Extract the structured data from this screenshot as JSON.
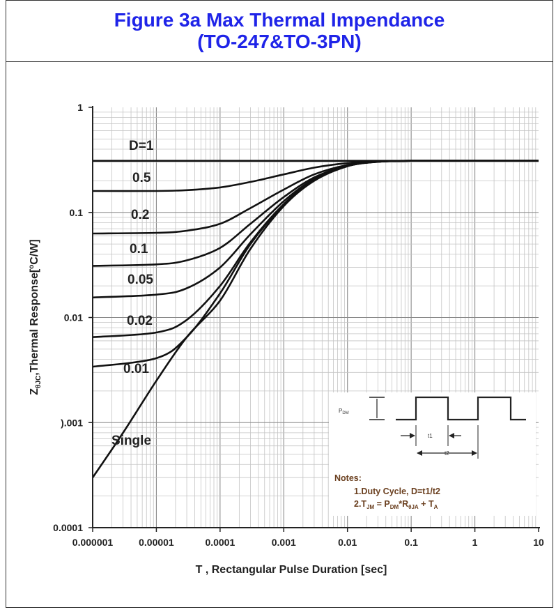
{
  "chart_data": {
    "type": "line",
    "title": "Figure 3a Max Thermal Impendance",
    "subtitle": "(TO-247&TO-3PN)",
    "xlabel": "T , Rectangular Pulse Duration [sec]",
    "ylabel_main": "Z",
    "ylabel_sub": "θJC",
    "ylabel_rest": ",Thermal Response[",
    "ylabel_sup": "o",
    "ylabel_end": "C/W]",
    "x_scale": "log",
    "y_scale": "log",
    "xlim": [
      1e-06,
      10
    ],
    "ylim": [
      0.0001,
      1
    ],
    "grid": true,
    "x_tick_labels": [
      "0.000001",
      "0.00001",
      "0.0001",
      "0.001",
      "0.01",
      "0.1",
      "1",
      "10"
    ],
    "x_tick_values": [
      1e-06,
      1e-05,
      0.0001,
      0.001,
      0.01,
      0.1,
      1,
      10
    ],
    "y_tick_labels": [
      "1",
      "0.1",
      "0.01",
      ").001",
      "0.0001"
    ],
    "y_tick_values": [
      1,
      0.1,
      0.01,
      0.001,
      0.0001
    ],
    "series": [
      {
        "name": "D=1",
        "x": [
          1e-06,
          1e-05,
          0.0001,
          0.001,
          0.01,
          0.1,
          1,
          10
        ],
        "y": [
          0.31,
          0.31,
          0.31,
          0.31,
          0.31,
          0.31,
          0.31,
          0.31
        ]
      },
      {
        "name": "0.5",
        "x": [
          1e-06,
          1e-05,
          3e-05,
          0.0001,
          0.0003,
          0.001,
          0.003,
          0.01,
          0.03,
          0.1,
          1,
          10
        ],
        "y": [
          0.16,
          0.16,
          0.163,
          0.173,
          0.195,
          0.23,
          0.267,
          0.295,
          0.307,
          0.31,
          0.31,
          0.31
        ]
      },
      {
        "name": "0.2",
        "x": [
          1e-06,
          1e-05,
          3e-05,
          0.0001,
          0.0003,
          0.001,
          0.003,
          0.01,
          0.03,
          0.1,
          1,
          10
        ],
        "y": [
          0.063,
          0.064,
          0.067,
          0.078,
          0.11,
          0.165,
          0.23,
          0.283,
          0.305,
          0.31,
          0.31,
          0.31
        ]
      },
      {
        "name": "0.1",
        "x": [
          1e-06,
          1e-05,
          3e-05,
          0.0001,
          0.0003,
          0.001,
          0.003,
          0.01,
          0.03,
          0.1,
          1,
          10
        ],
        "y": [
          0.031,
          0.032,
          0.035,
          0.046,
          0.078,
          0.14,
          0.215,
          0.279,
          0.304,
          0.31,
          0.31,
          0.31
        ]
      },
      {
        "name": "0.05",
        "x": [
          1e-06,
          1e-05,
          3e-05,
          0.0001,
          0.0003,
          0.001,
          0.003,
          0.01,
          0.03,
          0.1,
          1,
          10
        ],
        "y": [
          0.0155,
          0.0165,
          0.019,
          0.03,
          0.062,
          0.128,
          0.208,
          0.277,
          0.304,
          0.31,
          0.31,
          0.31
        ]
      },
      {
        "name": "0.02",
        "x": [
          1e-06,
          1e-05,
          3e-05,
          0.0001,
          0.0003,
          0.001,
          0.003,
          0.01,
          0.03,
          0.1,
          1,
          10
        ],
        "y": [
          0.0065,
          0.0072,
          0.0095,
          0.02,
          0.052,
          0.12,
          0.204,
          0.276,
          0.304,
          0.31,
          0.31,
          0.31
        ]
      },
      {
        "name": "0.01",
        "x": [
          1e-06,
          1e-05,
          3e-05,
          0.0001,
          0.0003,
          0.001,
          0.003,
          0.01,
          0.03,
          0.1,
          1,
          10
        ],
        "y": [
          0.0034,
          0.0041,
          0.0065,
          0.017,
          0.05,
          0.118,
          0.203,
          0.276,
          0.304,
          0.31,
          0.31,
          0.31
        ]
      },
      {
        "name": "Single",
        "x": [
          1e-06,
          3e-06,
          1e-05,
          3e-05,
          0.0001,
          0.0003,
          0.001,
          0.003,
          0.01,
          0.03,
          0.1,
          1,
          10
        ],
        "y": [
          0.0003,
          0.0008,
          0.0025,
          0.0065,
          0.0145,
          0.045,
          0.115,
          0.2,
          0.275,
          0.303,
          0.31,
          0.31,
          0.31
        ]
      }
    ],
    "inset": {
      "pdm_label": "P",
      "pdm_sub": "DM",
      "t1_label": "t1",
      "t2_label": "t2",
      "notes_title": "Notes:",
      "note1": "1.Duty  Cycle, D=t1/t2",
      "note2_a": "2.T",
      "note2_a_sub": "JM",
      "note2_b": " = P",
      "note2_b_sub": "DM",
      "note2_c": "*R",
      "note2_c_sub": "θJA",
      "note2_d": " + T",
      "note2_d_sub": "A"
    }
  }
}
